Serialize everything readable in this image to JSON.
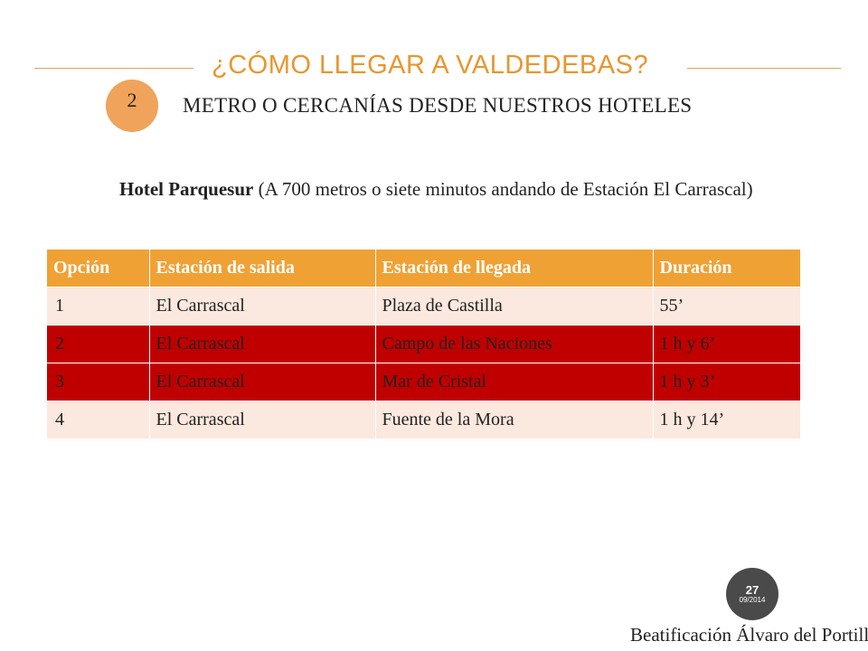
{
  "slide": {
    "title": "¿CÓMO LLEGAR A VALDEDEBAS?",
    "step_number": "2",
    "subtitle": "METRO O CERCANÍAS DESDE NUESTROS HOTELES",
    "hotel_name": "Hotel Parquesur",
    "hotel_note": " (A 700 metros o siete minutos andando de Estación El Carrascal)"
  },
  "table": {
    "headers": [
      "Opción",
      "Estación de salida",
      "Estación de llegada",
      "Duración"
    ],
    "rows": [
      [
        "1",
        "El Carrascal",
        "Plaza de Castilla",
        "55’"
      ],
      [
        "2",
        "El Carrascal",
        "Campo de las Naciones",
        "1 h y 6’"
      ],
      [
        "3",
        "El Carrascal",
        "Mar de Cristal",
        "1 h y 3’"
      ],
      [
        "4",
        "El Carrascal",
        "Fuente de la Mora",
        "1 h y 14’"
      ]
    ]
  },
  "date_badge": {
    "day": "27",
    "month_year": "09/2014"
  },
  "footer": "Beatificación Álvaro del Portillo",
  "colors": {
    "accent_orange": "#f0a134",
    "title_orange": "#e9962e",
    "badge_orange": "#f0a35b",
    "highlight_red": "#c00000",
    "row_light": "#fbe8de"
  }
}
